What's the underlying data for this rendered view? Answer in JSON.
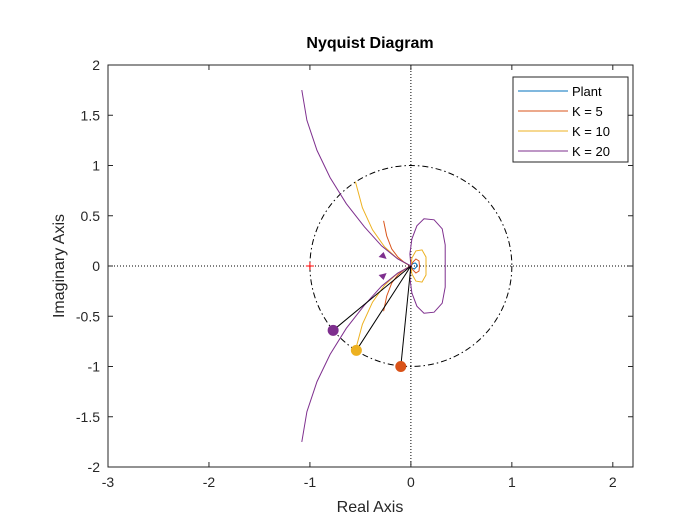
{
  "chart_data": {
    "type": "line",
    "title": "Nyquist Diagram",
    "xlabel": "Real Axis",
    "ylabel": "Imaginary Axis",
    "xlim": [
      -3,
      2.2
    ],
    "ylim": [
      -2,
      2
    ],
    "xticks": [
      -3,
      -2,
      -1,
      0,
      1,
      2
    ],
    "yticks": [
      -2,
      -1.5,
      -1,
      -0.5,
      0,
      0.5,
      1,
      1.5,
      2
    ],
    "xtick_labels": [
      "-3",
      "-2",
      "-1",
      "0",
      "1",
      "2"
    ],
    "ytick_labels": [
      "-2",
      "-1.5",
      "-1",
      "-0.5",
      "0",
      "0.5",
      "1",
      "1.5",
      "2"
    ],
    "grid": false,
    "legend_position": "top-right",
    "critical_point": [
      -1,
      0
    ],
    "unit_circle": {
      "center": [
        0,
        0
      ],
      "radius": 1,
      "style": "dash-dot",
      "color": "#000000"
    },
    "zero_lines": {
      "style": "dotted",
      "color": "#000000"
    },
    "series": [
      {
        "name": "Plant",
        "color": "#0072BD",
        "points": [
          [
            0,
            0
          ],
          [
            0.02,
            0.025
          ],
          [
            0.045,
            0.03
          ],
          [
            0.06,
            0.015
          ],
          [
            0.055,
            -0.01
          ],
          [
            0.035,
            -0.03
          ],
          [
            0.01,
            -0.02
          ],
          [
            0,
            0
          ]
        ]
      },
      {
        "name": "K = 5",
        "color": "#D95319",
        "points": [
          [
            -0.27,
            0.45
          ],
          [
            -0.24,
            0.3
          ],
          [
            -0.19,
            0.17
          ],
          [
            -0.13,
            0.09
          ],
          [
            -0.07,
            0.04
          ],
          [
            -0.02,
            0.01
          ],
          [
            0,
            0
          ],
          [
            0.02,
            0.04
          ],
          [
            0.05,
            0.07
          ],
          [
            0.08,
            0.05
          ],
          [
            0.085,
            0
          ],
          [
            0.08,
            -0.05
          ],
          [
            0.05,
            -0.07
          ],
          [
            0.02,
            -0.04
          ],
          [
            0,
            0
          ],
          [
            -0.02,
            -0.01
          ],
          [
            -0.07,
            -0.04
          ],
          [
            -0.13,
            -0.09
          ],
          [
            -0.19,
            -0.17
          ],
          [
            -0.24,
            -0.3
          ],
          [
            -0.27,
            -0.45
          ]
        ],
        "marker_point": [
          -0.1,
          -1
        ],
        "vector": {
          "from": [
            0,
            0
          ],
          "to": [
            -0.1,
            -1
          ]
        }
      },
      {
        "name": "K = 10",
        "color": "#EDB120",
        "points": [
          [
            -0.55,
            0.84
          ],
          [
            -0.48,
            0.58
          ],
          [
            -0.38,
            0.36
          ],
          [
            -0.26,
            0.19
          ],
          [
            -0.14,
            0.08
          ],
          [
            -0.04,
            0.02
          ],
          [
            0,
            0
          ],
          [
            0.01,
            0.08
          ],
          [
            0.05,
            0.15
          ],
          [
            0.11,
            0.16
          ],
          [
            0.15,
            0.09
          ],
          [
            0.15,
            0
          ],
          [
            0.15,
            -0.09
          ],
          [
            0.11,
            -0.16
          ],
          [
            0.05,
            -0.15
          ],
          [
            0.01,
            -0.08
          ],
          [
            0,
            0
          ],
          [
            -0.04,
            -0.02
          ],
          [
            -0.14,
            -0.08
          ],
          [
            -0.26,
            -0.19
          ],
          [
            -0.38,
            -0.36
          ],
          [
            -0.48,
            -0.58
          ],
          [
            -0.55,
            -0.84
          ]
        ],
        "marker_point": [
          -0.54,
          -0.84
        ],
        "vector": {
          "from": [
            0,
            0
          ],
          "to": [
            -0.54,
            -0.84
          ]
        }
      },
      {
        "name": "K = 20",
        "color": "#7E2F8E",
        "points": [
          [
            -1.08,
            1.75
          ],
          [
            -1.03,
            1.45
          ],
          [
            -0.93,
            1.15
          ],
          [
            -0.8,
            0.88
          ],
          [
            -0.64,
            0.62
          ],
          [
            -0.46,
            0.39
          ],
          [
            -0.29,
            0.2
          ],
          [
            -0.13,
            0.07
          ],
          [
            0,
            0
          ],
          [
            -0.01,
            0.12
          ],
          [
            0.01,
            0.27
          ],
          [
            0.06,
            0.4
          ],
          [
            0.13,
            0.47
          ],
          [
            0.23,
            0.46
          ],
          [
            0.31,
            0.37
          ],
          [
            0.34,
            0.21
          ],
          [
            0.34,
            0
          ],
          [
            0.34,
            -0.21
          ],
          [
            0.31,
            -0.37
          ],
          [
            0.23,
            -0.46
          ],
          [
            0.13,
            -0.47
          ],
          [
            0.06,
            -0.4
          ],
          [
            0.01,
            -0.27
          ],
          [
            -0.01,
            -0.12
          ],
          [
            0,
            0
          ],
          [
            -0.13,
            -0.07
          ],
          [
            -0.29,
            -0.2
          ],
          [
            -0.46,
            -0.39
          ],
          [
            -0.64,
            -0.62
          ],
          [
            -0.8,
            -0.88
          ],
          [
            -0.93,
            -1.15
          ],
          [
            -1.03,
            -1.45
          ],
          [
            -1.08,
            -1.75
          ]
        ],
        "marker_point": [
          -0.77,
          -0.64
        ],
        "vector": {
          "from": [
            0,
            0
          ],
          "to": [
            -0.77,
            -0.64
          ]
        }
      }
    ],
    "direction_arrows": [
      {
        "at": [
          -0.29,
          0.1
        ],
        "color": "#7E2F8E"
      },
      {
        "at": [
          -0.29,
          -0.1
        ],
        "color": "#7E2F8E"
      }
    ]
  }
}
